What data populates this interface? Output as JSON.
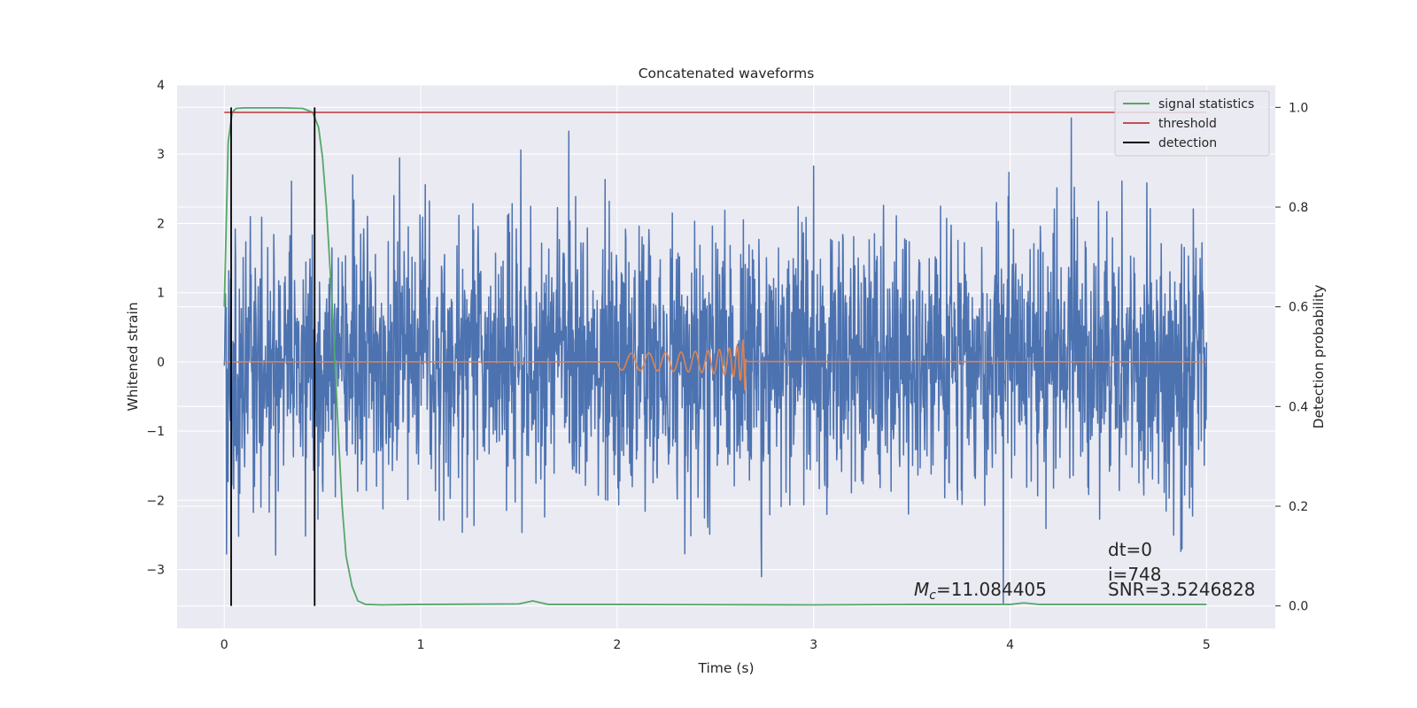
{
  "chart_data": {
    "type": "line",
    "title": "Concatenated waveforms",
    "xlabel": "Time (s)",
    "ylabel": "Whitened strain",
    "y2label": "Detection probability",
    "xlim": [
      -0.24,
      5.35
    ],
    "ylim": [
      -3.85,
      4.0
    ],
    "y2lim": [
      -0.045,
      1.045
    ],
    "xticks": [
      "0",
      "1",
      "2",
      "3",
      "4",
      "5"
    ],
    "yticks": [
      "4",
      "3",
      "2",
      "1",
      "0",
      "−1",
      "−2",
      "−3"
    ],
    "y2ticks": [
      "1.0",
      "0.8",
      "0.6",
      "0.4",
      "0.2",
      "0.0"
    ],
    "grid": true,
    "legend_position": "top-right",
    "colors": {
      "background": "#eaeaf2",
      "grid": "#ffffff",
      "noise": "#4c72b0",
      "chirp": "#dd8452",
      "signal_statistics": "#55a868",
      "threshold": "#c44e52",
      "detection": "#000000"
    },
    "legend": [
      {
        "label": "signal statistics",
        "color": "#55a868"
      },
      {
        "label": "threshold",
        "color": "#c44e52"
      },
      {
        "label": "detection",
        "color": "#000000"
      }
    ],
    "series": [
      {
        "name": "signal statistics",
        "axis": "right",
        "x": [
          0.0,
          0.02,
          0.04,
          0.06,
          0.1,
          0.2,
          0.3,
          0.4,
          0.45,
          0.48,
          0.5,
          0.52,
          0.55,
          0.58,
          0.6,
          0.62,
          0.65,
          0.68,
          0.72,
          0.8,
          1.0,
          1.5,
          1.57,
          1.65,
          2.0,
          3.0,
          3.5,
          4.0,
          4.07,
          4.15,
          4.5,
          5.0
        ],
        "y": [
          0.6,
          0.93,
          0.99,
          0.998,
          0.999,
          0.999,
          0.999,
          0.998,
          0.99,
          0.96,
          0.9,
          0.8,
          0.6,
          0.35,
          0.2,
          0.1,
          0.04,
          0.01,
          0.003,
          0.002,
          0.003,
          0.004,
          0.01,
          0.003,
          0.003,
          0.002,
          0.003,
          0.003,
          0.006,
          0.003,
          0.003,
          0.003
        ]
      },
      {
        "name": "threshold",
        "axis": "right",
        "x": [
          0.0,
          5.0
        ],
        "y": [
          0.99,
          0.99
        ]
      }
    ],
    "detections": [
      0.035,
      0.46
    ],
    "noise": {
      "x_range": [
        0.0,
        5.0
      ],
      "min": -3.5,
      "max": 3.65
    },
    "chirp": {
      "x_range": [
        2.0,
        2.66
      ],
      "peak": 0.6,
      "trough": -0.6
    },
    "annotations": [
      {
        "text": "dt=0",
        "x": 4.5,
        "y": -2.65
      },
      {
        "text": "i=748",
        "x": 4.5,
        "y": -3.0
      },
      {
        "text": "SNR=3.5246828",
        "x": 4.5,
        "y": -3.3
      },
      {
        "text": "=11.084405",
        "x": 3.5,
        "y": -3.3
      }
    ]
  }
}
